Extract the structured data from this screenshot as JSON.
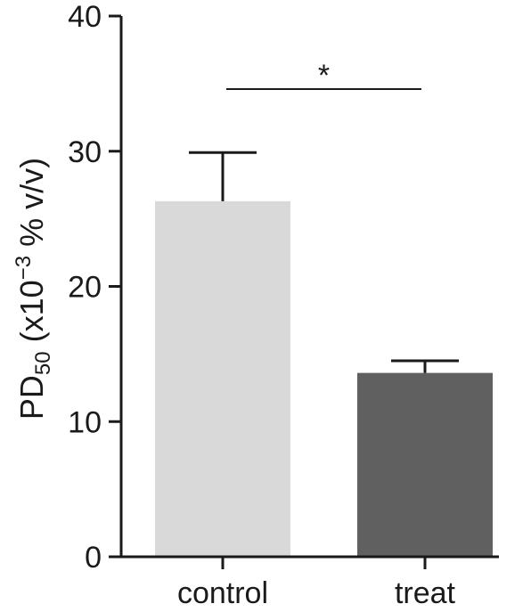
{
  "chart_data": {
    "type": "bar",
    "categories": [
      "control",
      "treat"
    ],
    "values": [
      26.3,
      13.6
    ],
    "error_upper": [
      29.9,
      14.5
    ],
    "bar_colors": [
      "#d9d9d9",
      "#606060"
    ],
    "ylabel": {
      "prefix": "PD",
      "sub": "50",
      "middle": " (x10",
      "sup": "−3",
      "suffix": " % v/v)"
    },
    "ylim": [
      0,
      40
    ],
    "yticks": [
      "0",
      "10",
      "20",
      "30",
      "40"
    ],
    "grid": false,
    "annotation": {
      "text": "*",
      "from": "control",
      "to": "treat",
      "y_value": 34.6
    }
  }
}
